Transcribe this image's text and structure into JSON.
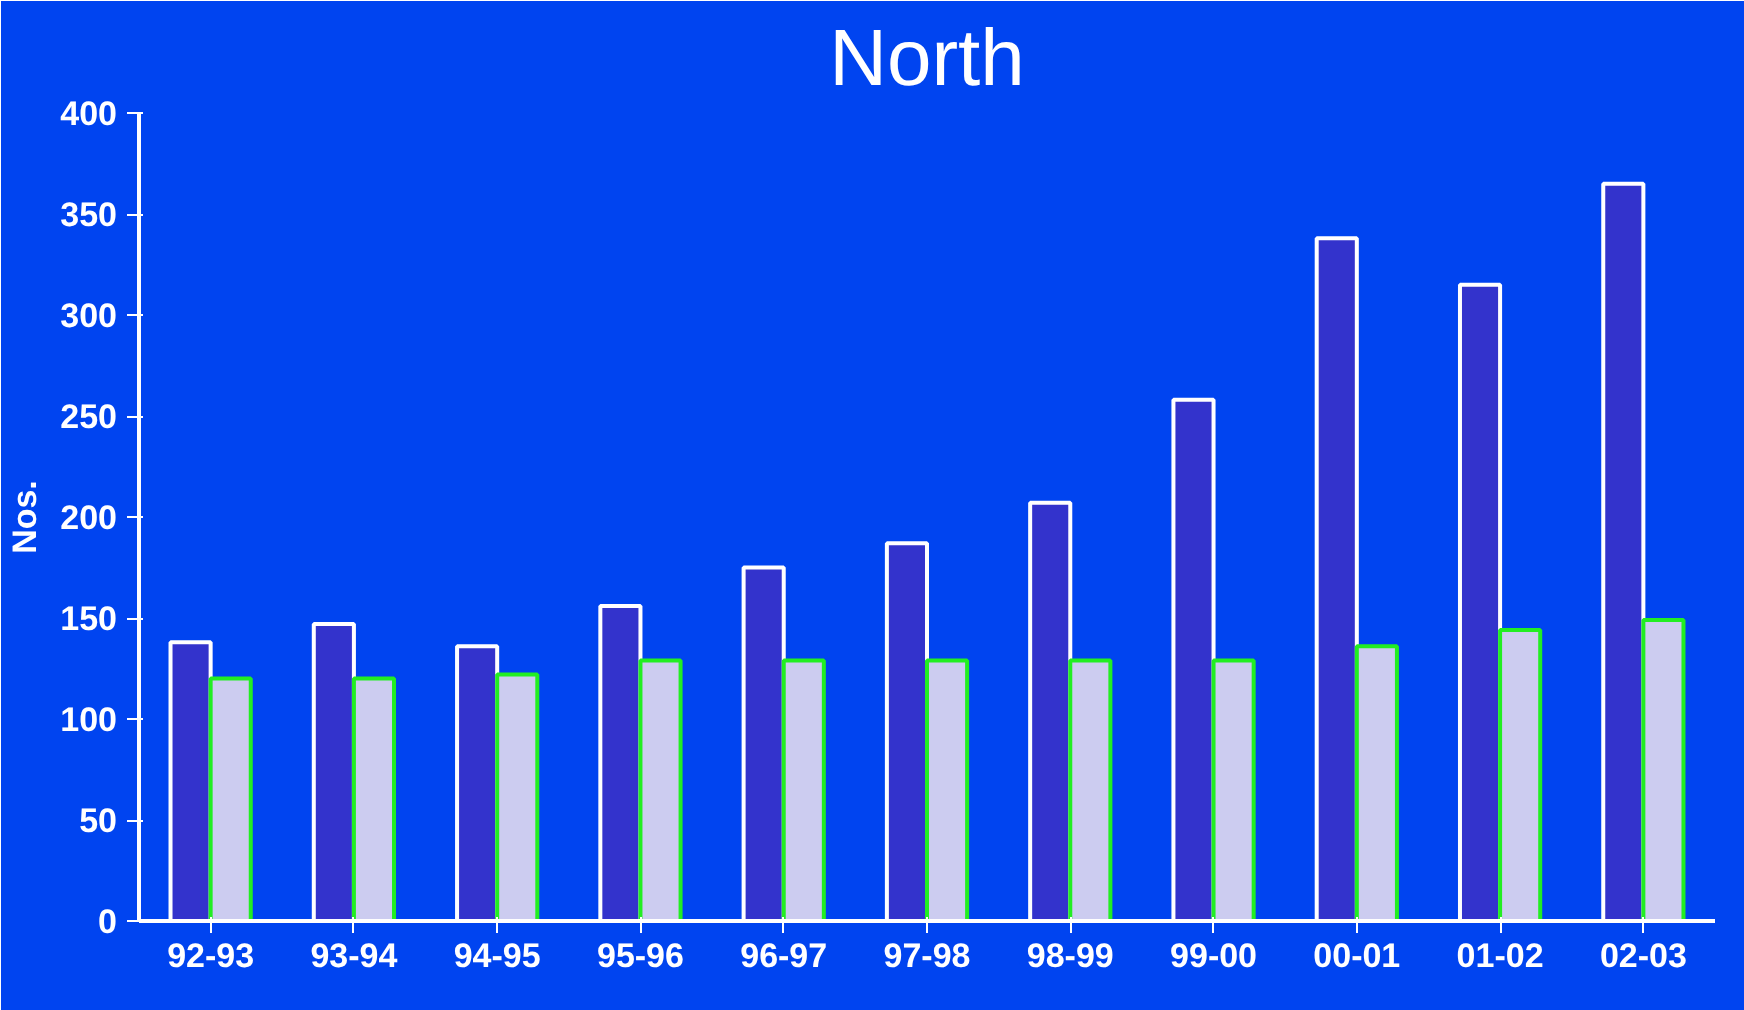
{
  "chart_data": {
    "type": "bar",
    "title": "North",
    "ylabel": "Nos.",
    "categories": [
      "92-93",
      "93-94",
      "94-95",
      "95-96",
      "96-97",
      "97-98",
      "98-99",
      "99-00",
      "00-01",
      "01-02",
      "02-03"
    ],
    "series": [
      {
        "color": "#3333cc",
        "values": [
          138,
          147,
          136,
          156,
          175,
          187,
          207,
          258,
          338,
          315,
          365
        ]
      },
      {
        "color": "#ccccf0",
        "values": [
          120,
          120,
          122,
          129,
          129,
          129,
          129,
          129,
          136,
          144,
          149
        ]
      }
    ],
    "ylim": [
      0,
      400
    ],
    "yticks": [
      0,
      50,
      100,
      150,
      200,
      250,
      300,
      350,
      400
    ],
    "grid": false
  }
}
